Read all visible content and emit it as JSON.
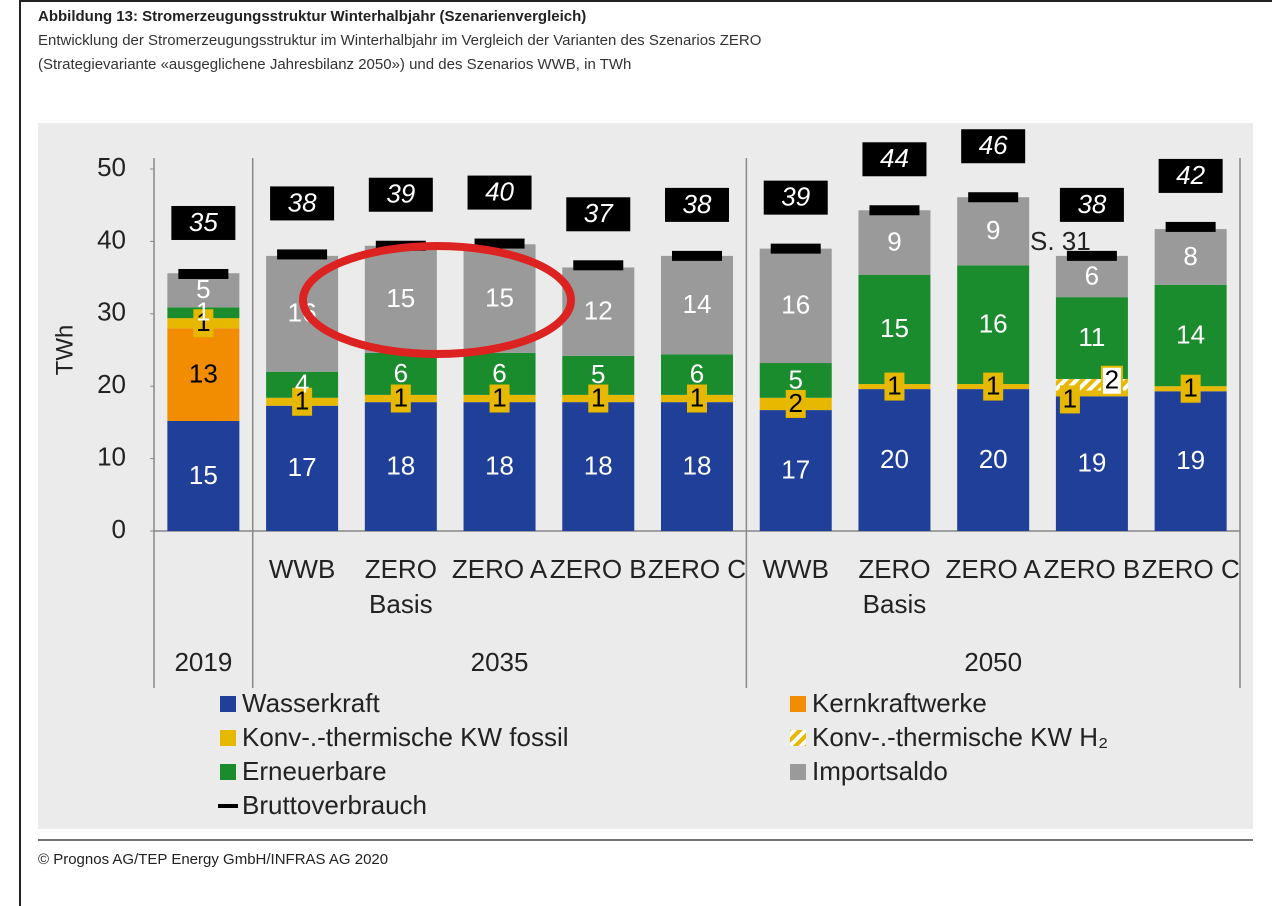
{
  "chart_data": {
    "type": "stacked_bar",
    "title": "Abbildung 13: Stromerzeugungsstruktur Winterhalbjahr (Szenarienvergleich)",
    "subtitle": [
      "Entwicklung der Stromerzeugungsstruktur im Winterhalbjahr im Vergleich der Varianten des Szenarios ZERO",
      "(Strategievariante «ausgeglichene Jahresbilanz 2050») und des Szenarios WWB, in TWh"
    ],
    "y_label": "TWh",
    "source": "© Prognos AG/TEP Energy GmbH/INFRAS AG 2020",
    "annotation": "S. 31",
    "categories": [
      null,
      "WWB",
      "ZERO Basis",
      "ZERO A",
      "ZERO B",
      "ZERO C",
      "WWB",
      "ZERO Basis",
      "ZERO A",
      "ZERO B",
      "ZERO C"
    ],
    "groups": [
      {
        "label": "2019",
        "count": 1
      },
      {
        "label": "2035",
        "count": 5
      },
      {
        "label": "2050",
        "count": 5
      }
    ],
    "ylim": [
      0,
      50
    ],
    "yticks": [
      0,
      10,
      20,
      30,
      40,
      50
    ],
    "series": [
      {
        "name": "Wasserkraft",
        "color": "#1f3f99",
        "label_color": "#ffffff",
        "values": [
          15.2,
          17.3,
          17.8,
          17.8,
          17.8,
          17.8,
          16.7,
          19.6,
          19.6,
          18.6,
          19.3
        ],
        "value_labels": [
          "15",
          "17",
          "18",
          "18",
          "18",
          "18",
          "17",
          "20",
          "20",
          "19",
          "19"
        ]
      },
      {
        "name": "Kernkraftwerke",
        "color": "#f28c00",
        "label_color": "#000000",
        "values": [
          12.8,
          0,
          0,
          0,
          0,
          0,
          0,
          0,
          0,
          0,
          0
        ],
        "value_labels": [
          "13",
          null,
          null,
          null,
          null,
          null,
          null,
          null,
          null,
          null,
          null
        ]
      },
      {
        "name": "Konv-.-thermische KW fossil",
        "color": "#e6b800",
        "label_color": "#000000",
        "boxed": true,
        "values": [
          1.4,
          1.1,
          1.0,
          1.0,
          1.0,
          1.0,
          1.7,
          0.7,
          0.7,
          0.8,
          0.7
        ],
        "value_labels": [
          "1",
          "1",
          "1",
          "1",
          "1",
          "1",
          "2",
          "1",
          "1",
          "1",
          "1"
        ]
      },
      {
        "name": "Konv-.-thermische KW H₂",
        "color": "#e6b800",
        "label_color": "#000000",
        "boxed": true,
        "hatch": true,
        "values": [
          0,
          0,
          0,
          0,
          0,
          0,
          0,
          0,
          0,
          1.6,
          0
        ],
        "value_labels": [
          null,
          null,
          null,
          null,
          null,
          null,
          null,
          null,
          null,
          "2",
          null
        ]
      },
      {
        "name": "Erneuerbare",
        "color": "#1a8c2e",
        "label_color": "#ffffff",
        "values": [
          1.5,
          3.6,
          5.8,
          5.8,
          5.4,
          5.6,
          4.8,
          15.1,
          16.4,
          11.3,
          14.0
        ],
        "value_labels": [
          "1",
          "4",
          "6",
          "6",
          "5",
          "6",
          "5",
          "15",
          "16",
          "11",
          "14"
        ]
      },
      {
        "name": "Importsaldo",
        "color": "#9a9a9a",
        "label_color": "#ffffff",
        "values": [
          4.7,
          16.0,
          14.8,
          15.0,
          12.2,
          13.6,
          15.8,
          8.9,
          9.4,
          5.7,
          7.7
        ],
        "value_labels": [
          "5",
          "16",
          "15",
          "15",
          "12",
          "14",
          "16",
          "9",
          "9",
          "6",
          "8"
        ]
      }
    ],
    "total_series": {
      "name": "Bruttoverbrauch",
      "color": "#000000",
      "values": [
        35.5,
        38.2,
        39.4,
        39.7,
        36.7,
        38.0,
        39.0,
        44.3,
        46.1,
        38.0,
        42.0
      ],
      "value_labels": [
        "35",
        "38",
        "39",
        "40",
        "37",
        "38",
        "39",
        "44",
        "46",
        "38",
        "42"
      ]
    }
  }
}
